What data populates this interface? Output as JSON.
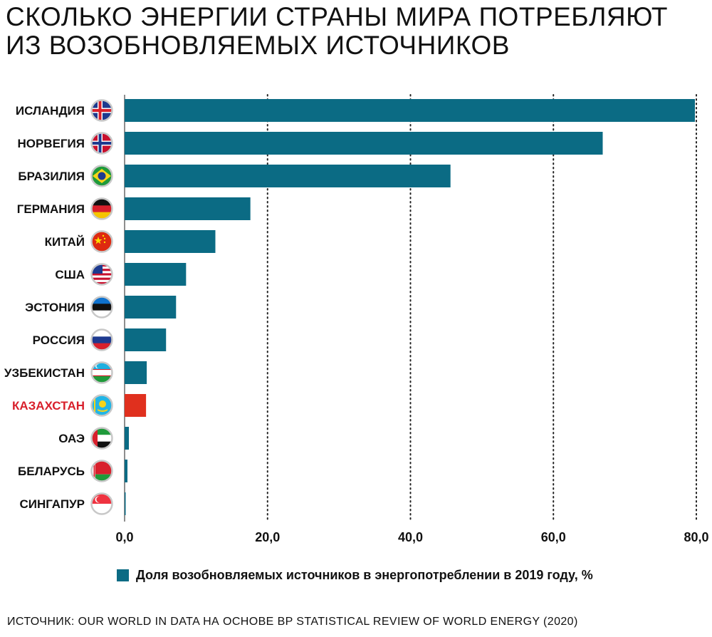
{
  "title_lines": [
    "СКОЛЬКО ЭНЕРГИИ СТРАНЫ МИРА ПОТРЕБЛЯЮТ",
    "ИЗ ВОЗОБНОВЛЯЕМЫХ ИСТОЧНИКОВ"
  ],
  "legend": "Доля возобновляемых источников в энергопотреблении в 2019 году, %",
  "source": "ИСТОЧНИК: OUR WORLD IN DATA НА ОСНОВЕ BP STATISTICAL REVIEW OF WORLD ENERGY (2020)",
  "colors": {
    "bar": "#0b6b84",
    "highlight_bar": "#e0301e",
    "highlight_label": "#d8202c",
    "label": "#111111",
    "grid": "#222222"
  },
  "chart_data": {
    "type": "bar",
    "orientation": "horizontal",
    "categories": [
      "ИСЛАНДИЯ",
      "НОРВЕГИЯ",
      "БРАЗИЛИЯ",
      "ГЕРМАНИЯ",
      "КИТАЙ",
      "США",
      "ЭСТОНИЯ",
      "РОССИЯ",
      "УЗБЕКИСТАН",
      "КАЗАХСТАН",
      "ОАЭ",
      "БЕЛАРУСЬ",
      "СИНГАПУР"
    ],
    "flag_icons": [
      "iceland-flag-icon",
      "norway-flag-icon",
      "brazil-flag-icon",
      "germany-flag-icon",
      "china-flag-icon",
      "usa-flag-icon",
      "estonia-flag-icon",
      "russia-flag-icon",
      "uzbekistan-flag-icon",
      "kazakhstan-flag-icon",
      "uae-flag-icon",
      "belarus-flag-icon",
      "singapore-flag-icon"
    ],
    "values": [
      79.8,
      66.9,
      45.6,
      17.6,
      12.7,
      8.6,
      7.2,
      5.8,
      3.1,
      3.0,
      0.6,
      0.4,
      0.1
    ],
    "highlight": "КАЗАХСТАН",
    "xlim": [
      0,
      80
    ],
    "xticks": [
      0,
      20,
      40,
      60,
      80
    ],
    "xtick_labels": [
      "0,0",
      "20,0",
      "40,0",
      "60,0",
      "80,0"
    ],
    "grid": "vertical-dotted",
    "legend_position": "bottom",
    "series": [
      {
        "name": "Доля возобновляемых источников в энергопотреблении в 2019 году, %"
      }
    ]
  }
}
